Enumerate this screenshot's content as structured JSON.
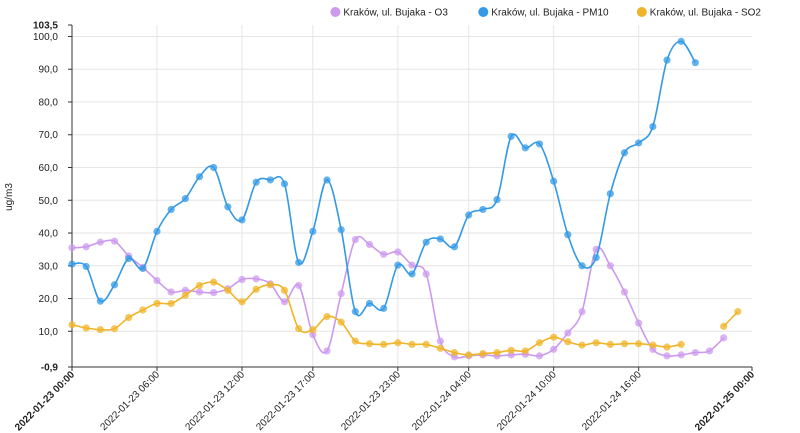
{
  "chart_data": {
    "type": "line",
    "ylabel": "ug/m3",
    "xlabel": "",
    "title": "",
    "x_unit": "hours from 2022-01-23 00:00",
    "xlim": [
      0,
      48
    ],
    "ylim": [
      -0.9,
      103.5
    ],
    "y_ticks": [
      {
        "value": 103.5,
        "label": "103,5",
        "bold": true
      },
      {
        "value": 100,
        "label": "100,0"
      },
      {
        "value": 90,
        "label": "90,0"
      },
      {
        "value": 80,
        "label": "80,0"
      },
      {
        "value": 70,
        "label": "70,0"
      },
      {
        "value": 60,
        "label": "60,0"
      },
      {
        "value": 50,
        "label": "50,0"
      },
      {
        "value": 40,
        "label": "40,0"
      },
      {
        "value": 30,
        "label": "30,0"
      },
      {
        "value": 20,
        "label": "20,0"
      },
      {
        "value": 10,
        "label": "10,0"
      },
      {
        "value": -0.9,
        "label": "-0,9",
        "bold": true
      }
    ],
    "x_ticks": [
      {
        "value": 0,
        "label": "2022-01-23 00:00",
        "bold": true
      },
      {
        "value": 6,
        "label": "2022-01-23 06:00"
      },
      {
        "value": 12,
        "label": "2022-01-23 12:00"
      },
      {
        "value": 17,
        "label": "2022-01-23 17:00"
      },
      {
        "value": 23,
        "label": "2022-01-23 23:00"
      },
      {
        "value": 28,
        "label": "2022-01-24 04:00"
      },
      {
        "value": 34,
        "label": "2022-01-24 10:00"
      },
      {
        "value": 40,
        "label": "2022-01-24 16:00"
      },
      {
        "value": 48,
        "label": "2022-01-25 00:00",
        "bold": true
      }
    ],
    "grid": true,
    "legend_position": "top-right",
    "series": [
      {
        "name": "Kraków, ul. Bujaka - O3",
        "color": "#cc99ee",
        "values": [
          35.5,
          35.8,
          37.2,
          37.5,
          33,
          29.5,
          25.5,
          22,
          22.5,
          22,
          21.8,
          23,
          25.8,
          26,
          24.5,
          19,
          24,
          9,
          4,
          21.5,
          38,
          36.5,
          33.5,
          34.2,
          30.2,
          27.5,
          7,
          2.2,
          2.5,
          2.8,
          2.5,
          2.8,
          3,
          2.5,
          4.5,
          9.5,
          16,
          35,
          30,
          22,
          12.5,
          4.5,
          2.5,
          2.8,
          3.5,
          4,
          8
        ]
      },
      {
        "name": "Kraków, ul. Bujaka - PM10",
        "color": "#3399e6",
        "values": [
          30.5,
          29.8,
          19.2,
          24.2,
          32.2,
          29.2,
          40.5,
          47.2,
          50.5,
          57.2,
          60,
          48,
          44,
          55.5,
          56.2,
          55,
          31,
          40.5,
          56.2,
          41,
          16,
          18.5,
          17,
          30.2,
          27.5,
          37.2,
          38.2,
          35.8,
          45.5,
          47.2,
          50.2,
          69.5,
          66,
          67.2,
          55.8,
          39.5,
          30,
          32.5,
          52,
          64.5,
          67.5,
          72.5,
          92.8,
          98.5,
          92
        ]
      },
      {
        "name": "Kraków, ul. Bujaka - SO2",
        "color": "#f0b428",
        "values": [
          12,
          11,
          10.5,
          10.8,
          14.2,
          16.5,
          18.5,
          18.5,
          21,
          24,
          25,
          22.5,
          19,
          22.8,
          24.2,
          22.5,
          10.8,
          10.5,
          14.5,
          12.8,
          7,
          6.2,
          6,
          6.5,
          6,
          6,
          4.8,
          3.5,
          2.8,
          3.2,
          3.5,
          4.2,
          4,
          6.5,
          8.2,
          6.8,
          5.8,
          6.5,
          6,
          6.2,
          6.2,
          5.8,
          5.2,
          6,
          null,
          null,
          11.5,
          16
        ]
      }
    ]
  }
}
